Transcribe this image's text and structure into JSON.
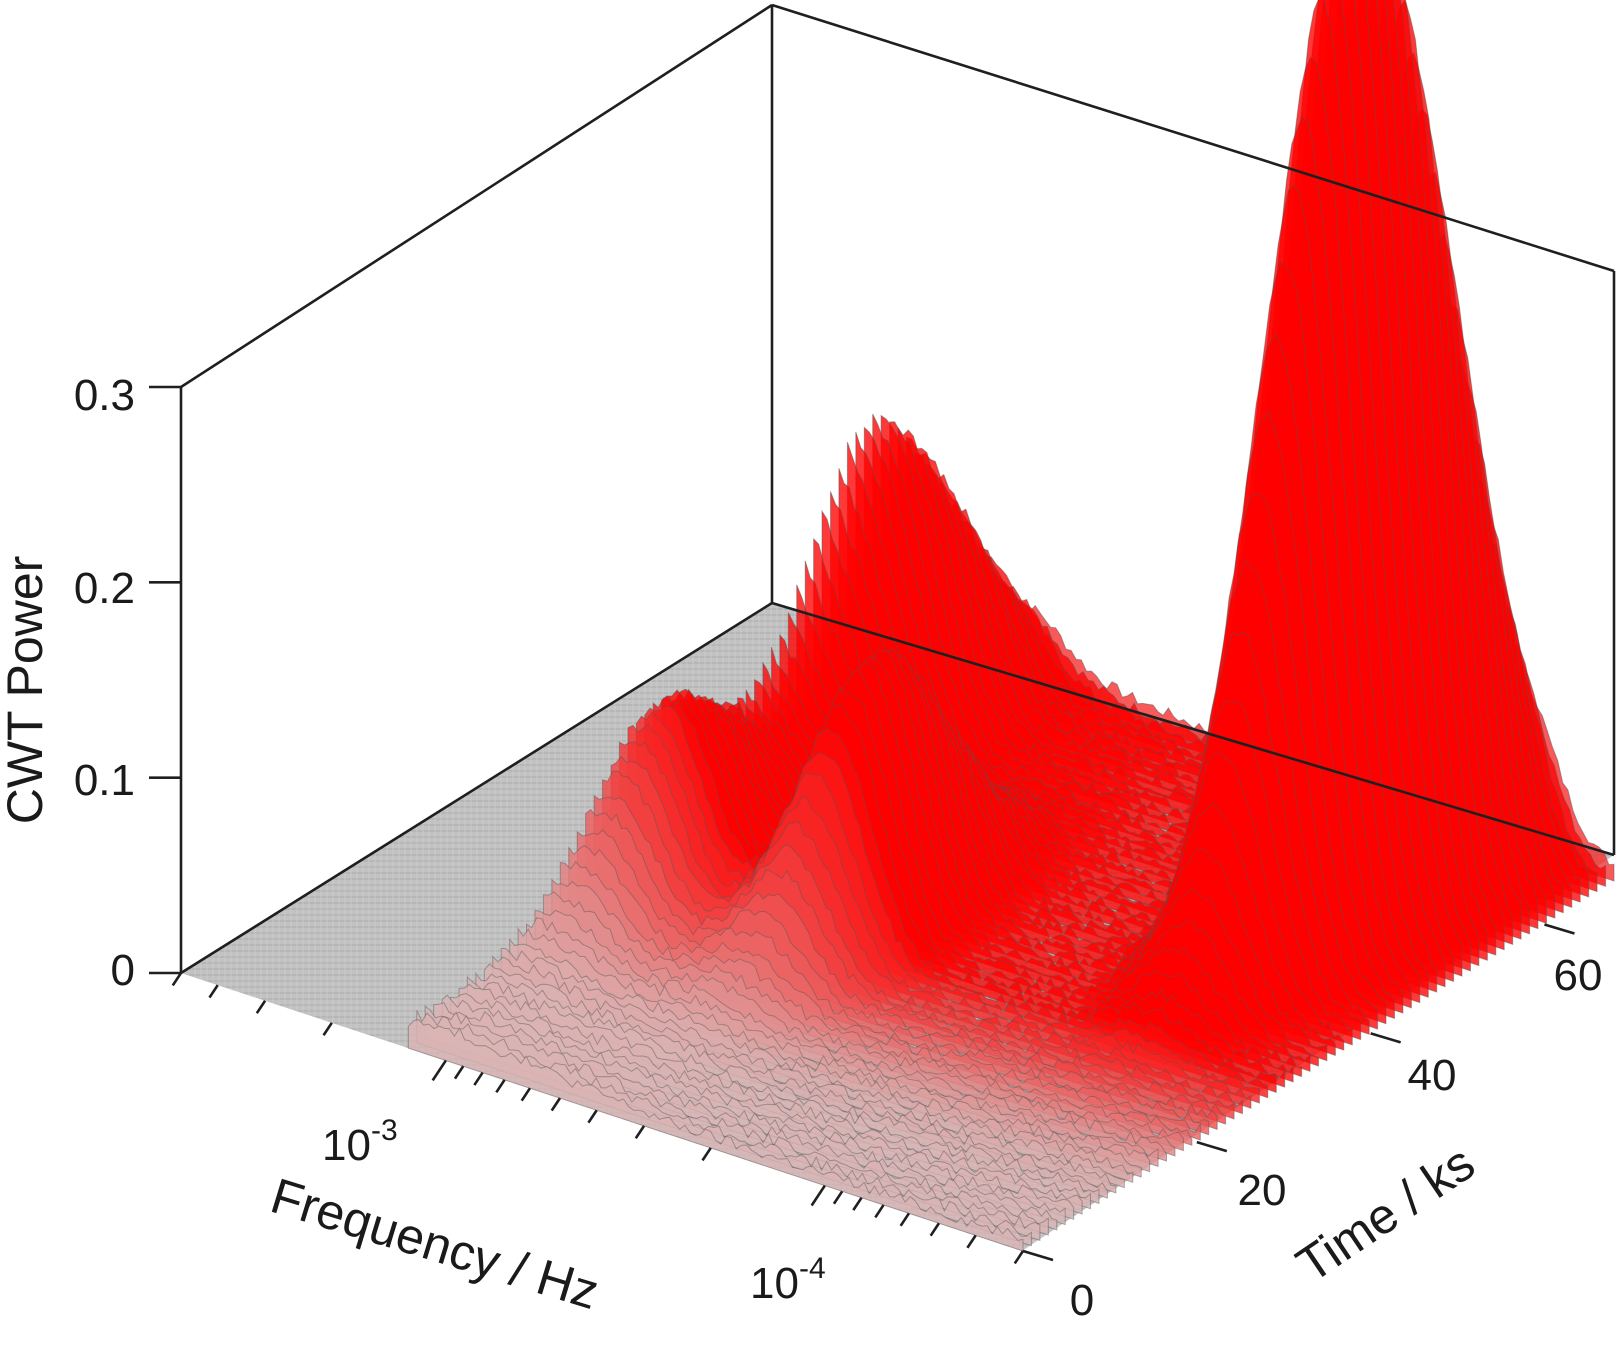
{
  "chart_data": {
    "type": "surface",
    "title": "",
    "xlabel": "Frequency / Hz",
    "ylabel": "Time / ks",
    "zlabel": "CWT Power",
    "x_scale": "log",
    "x_ticks": [
      {
        "value": 0.001,
        "base": "10",
        "exp": "-3"
      },
      {
        "value": 0.0001,
        "base": "10",
        "exp": "-4"
      }
    ],
    "y_ticks": [
      "0",
      "20",
      "40",
      "60"
    ],
    "z_ticks": [
      "0",
      "0.1",
      "0.2",
      "0.3"
    ],
    "xlim_hz": [
      0.005,
      3e-05
    ],
    "ylim_ks": [
      0,
      68
    ],
    "zlim": [
      0,
      0.3
    ],
    "grid": false,
    "colors": {
      "peak": "#ff0000",
      "low": "#d4d4d4",
      "floor": "#c0c0c0",
      "ridge": "#555555"
    },
    "peaks": [
      {
        "frequency_hz": 6.3e-05,
        "time_ks": 48,
        "power": 0.345
      },
      {
        "frequency_hz": 5.5e-05,
        "time_ks": 56,
        "power": 0.29
      },
      {
        "frequency_hz": 0.00042,
        "time_ks": 33,
        "power": 0.13
      },
      {
        "frequency_hz": 0.0017,
        "time_ks": 50,
        "power": 0.16
      },
      {
        "frequency_hz": 0.0011,
        "time_ks": 55,
        "power": 0.12
      },
      {
        "frequency_hz": 0.0021,
        "time_ks": 28,
        "power": 0.125
      },
      {
        "frequency_hz": 0.0011,
        "time_ks": 28,
        "power": 0.085
      }
    ]
  }
}
